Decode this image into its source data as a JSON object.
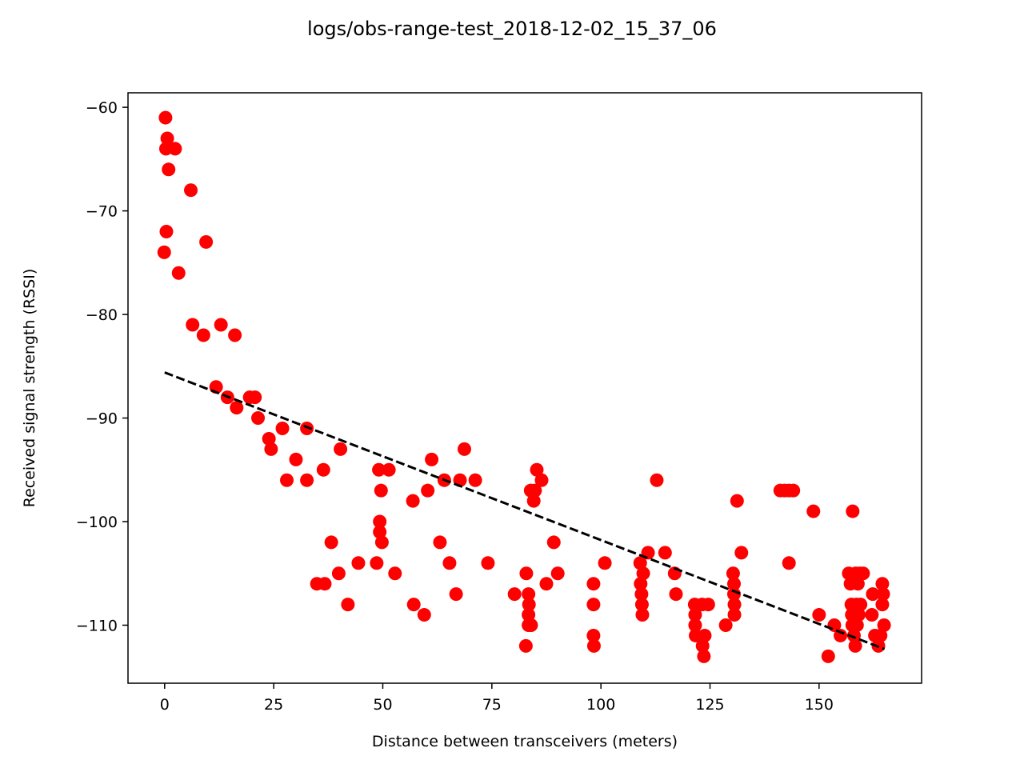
{
  "chart_data": {
    "type": "scatter",
    "title": "logs/obs-range-test_2018-12-02_15_37_06",
    "xlabel": "Distance between transceivers (meters)",
    "ylabel": "Received signal strength (RSSI)",
    "xlim": [
      -8.4,
      173.5
    ],
    "ylim": [
      -115.6,
      -58.6
    ],
    "xticks": [
      0,
      25,
      50,
      75,
      100,
      125,
      150
    ],
    "xtick_labels": [
      "0",
      "25",
      "50",
      "75",
      "100",
      "125",
      "150"
    ],
    "yticks": [
      -110,
      -100,
      -90,
      -80,
      -70,
      -60
    ],
    "ytick_labels": [
      "−110",
      "−100",
      "−90",
      "−80",
      "−70",
      "−60"
    ],
    "grid": false,
    "colors": {
      "points": "#ff0000",
      "fit_line": "#000000"
    },
    "fit_line": {
      "style": "dashed",
      "x": [
        0,
        165
      ],
      "y": [
        -85.6,
        -112.3
      ]
    },
    "points": [
      [
        0.2,
        -61
      ],
      [
        0.6,
        -63
      ],
      [
        0.3,
        -64
      ],
      [
        2.4,
        -64
      ],
      [
        0.9,
        -66
      ],
      [
        6.0,
        -68
      ],
      [
        0.4,
        -72
      ],
      [
        -0.1,
        -74
      ],
      [
        9.5,
        -73
      ],
      [
        3.2,
        -76
      ],
      [
        6.4,
        -81
      ],
      [
        8.9,
        -82
      ],
      [
        12.9,
        -81
      ],
      [
        16.1,
        -82
      ],
      [
        11.8,
        -87
      ],
      [
        14.4,
        -88
      ],
      [
        16.5,
        -89
      ],
      [
        19.5,
        -88
      ],
      [
        20.7,
        -88
      ],
      [
        21.4,
        -90
      ],
      [
        23.9,
        -92
      ],
      [
        24.4,
        -93
      ],
      [
        27.0,
        -91
      ],
      [
        28.0,
        -96
      ],
      [
        30.1,
        -94
      ],
      [
        32.6,
        -96
      ],
      [
        32.6,
        -91
      ],
      [
        34.9,
        -106
      ],
      [
        36.4,
        -95
      ],
      [
        36.7,
        -106
      ],
      [
        38.2,
        -102
      ],
      [
        39.9,
        -105
      ],
      [
        40.3,
        -93
      ],
      [
        42.0,
        -108
      ],
      [
        44.4,
        -104
      ],
      [
        48.6,
        -104
      ],
      [
        49.1,
        -95
      ],
      [
        49.3,
        -100
      ],
      [
        49.3,
        -101
      ],
      [
        49.6,
        -97
      ],
      [
        49.8,
        -102
      ],
      [
        51.4,
        -95
      ],
      [
        52.8,
        -105
      ],
      [
        56.9,
        -98
      ],
      [
        57.1,
        -108
      ],
      [
        59.5,
        -109
      ],
      [
        60.3,
        -97
      ],
      [
        61.2,
        -94
      ],
      [
        63.1,
        -102
      ],
      [
        64.1,
        -96
      ],
      [
        65.3,
        -104
      ],
      [
        66.8,
        -107
      ],
      [
        67.7,
        -96
      ],
      [
        68.7,
        -93
      ],
      [
        71.2,
        -96
      ],
      [
        74.1,
        -104
      ],
      [
        80.2,
        -107
      ],
      [
        82.8,
        -112
      ],
      [
        82.9,
        -105
      ],
      [
        83.4,
        -107
      ],
      [
        83.5,
        -108
      ],
      [
        83.4,
        -109
      ],
      [
        83.4,
        -110
      ],
      [
        84.0,
        -110
      ],
      [
        83.9,
        -97
      ],
      [
        84.6,
        -98
      ],
      [
        84.9,
        -97
      ],
      [
        85.3,
        -95
      ],
      [
        86.4,
        -96
      ],
      [
        87.5,
        -106
      ],
      [
        89.2,
        -102
      ],
      [
        90.1,
        -105
      ],
      [
        98.3,
        -106
      ],
      [
        98.3,
        -108
      ],
      [
        98.3,
        -111
      ],
      [
        98.4,
        -112
      ],
      [
        100.9,
        -104
      ],
      [
        109.0,
        -104
      ],
      [
        109.1,
        -106
      ],
      [
        109.3,
        -107
      ],
      [
        109.4,
        -108
      ],
      [
        109.5,
        -109
      ],
      [
        109.7,
        -105
      ],
      [
        110.8,
        -103
      ],
      [
        112.8,
        -96
      ],
      [
        114.7,
        -103
      ],
      [
        116.9,
        -105
      ],
      [
        117.2,
        -107
      ],
      [
        121.5,
        -108
      ],
      [
        121.6,
        -109
      ],
      [
        121.6,
        -110
      ],
      [
        121.7,
        -111
      ],
      [
        123.2,
        -108
      ],
      [
        123.3,
        -112
      ],
      [
        123.6,
        -113
      ],
      [
        123.8,
        -111
      ],
      [
        124.6,
        -108
      ],
      [
        128.6,
        -110
      ],
      [
        130.3,
        -105
      ],
      [
        130.5,
        -106
      ],
      [
        130.5,
        -107
      ],
      [
        130.6,
        -108
      ],
      [
        130.6,
        -109
      ],
      [
        131.2,
        -98
      ],
      [
        132.2,
        -103
      ],
      [
        141.1,
        -97
      ],
      [
        142.1,
        -97
      ],
      [
        143.1,
        -97
      ],
      [
        144.1,
        -97
      ],
      [
        143.1,
        -104
      ],
      [
        148.7,
        -99
      ],
      [
        150.0,
        -109
      ],
      [
        152.1,
        -113
      ],
      [
        153.5,
        -110
      ],
      [
        154.9,
        -111
      ],
      [
        156.8,
        -105
      ],
      [
        157.2,
        -106
      ],
      [
        157.4,
        -108
      ],
      [
        157.5,
        -109
      ],
      [
        157.6,
        -110
      ],
      [
        157.7,
        -99
      ],
      [
        158.0,
        -111
      ],
      [
        158.3,
        -112
      ],
      [
        158.4,
        -105
      ],
      [
        158.6,
        -108
      ],
      [
        158.7,
        -110
      ],
      [
        158.9,
        -106
      ],
      [
        159.1,
        -109
      ],
      [
        159.3,
        -105
      ],
      [
        159.5,
        -108
      ],
      [
        160.1,
        -105
      ],
      [
        162.1,
        -109
      ],
      [
        162.3,
        -107
      ],
      [
        162.8,
        -111
      ],
      [
        163.6,
        -112
      ],
      [
        164.1,
        -111
      ],
      [
        164.5,
        -106
      ],
      [
        164.5,
        -108
      ],
      [
        164.7,
        -107
      ],
      [
        164.9,
        -110
      ]
    ]
  }
}
